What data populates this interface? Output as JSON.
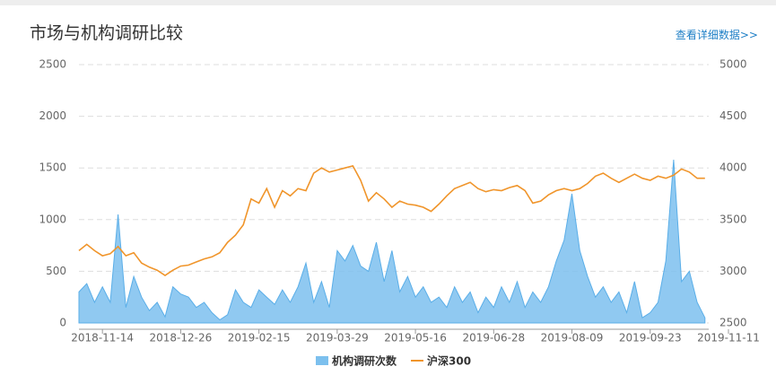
{
  "title": "市场与机构调研比较",
  "link": "查看详细数据>>",
  "chart_data": {
    "type": "area-line",
    "categories": [
      null,
      null,
      null,
      "2018-11-14",
      null,
      null,
      null,
      null,
      null,
      null,
      null,
      null,
      null,
      "2018-12-26",
      null,
      null,
      null,
      null,
      null,
      null,
      null,
      null,
      null,
      "2019-02-15",
      null,
      null,
      null,
      null,
      null,
      null,
      null,
      null,
      null,
      "2019-03-29",
      null,
      null,
      null,
      null,
      null,
      null,
      null,
      null,
      null,
      "2019-05-16",
      null,
      null,
      null,
      null,
      null,
      null,
      null,
      null,
      null,
      "2019-06-28",
      null,
      null,
      null,
      null,
      null,
      null,
      null,
      null,
      null,
      "2019-08-09",
      null,
      null,
      null,
      null,
      null,
      null,
      null,
      null,
      null,
      "2019-09-23",
      null,
      null,
      null,
      null,
      null,
      null,
      null,
      null,
      null,
      "2019-11-11"
    ],
    "series": [
      {
        "name": "机构调研次数",
        "color": "#7cc0ee",
        "kind": "area",
        "values": [
          300,
          380,
          200,
          350,
          200,
          1050,
          150,
          450,
          250,
          120,
          200,
          60,
          350,
          280,
          250,
          150,
          200,
          100,
          30,
          80,
          320,
          200,
          150,
          320,
          250,
          180,
          320,
          200,
          350,
          580,
          200,
          400,
          150,
          700,
          600,
          750,
          550,
          500,
          780,
          400,
          700,
          300,
          450,
          250,
          350,
          200,
          250,
          150,
          350,
          200,
          300,
          100,
          250,
          150,
          350,
          200,
          400,
          150,
          300,
          200,
          350,
          600,
          800,
          1250,
          700,
          450,
          250,
          350,
          200,
          300,
          100,
          400,
          50,
          100,
          200,
          600,
          1580,
          400,
          500,
          200,
          50,
          null,
          null,
          null
        ]
      },
      {
        "name": "沪深300",
        "color": "#f0952b",
        "kind": "line",
        "axis": "y2",
        "values": [
          3200,
          3260,
          3200,
          3150,
          3170,
          3240,
          3150,
          3180,
          3080,
          3040,
          3010,
          2960,
          3010,
          3050,
          3060,
          3090,
          3120,
          3140,
          3180,
          3280,
          3350,
          3450,
          3700,
          3660,
          3800,
          3620,
          3780,
          3730,
          3800,
          3780,
          3950,
          4000,
          3960,
          3980,
          4000,
          4020,
          3880,
          3680,
          3760,
          3700,
          3620,
          3680,
          3650,
          3640,
          3620,
          3580,
          3650,
          3730,
          3800,
          3830,
          3860,
          3800,
          3770,
          3790,
          3780,
          3810,
          3830,
          3780,
          3660,
          3680,
          3740,
          3780,
          3800,
          3780,
          3800,
          3850,
          3920,
          3950,
          3900,
          3860,
          3900,
          3940,
          3900,
          3880,
          3920,
          3900,
          3930,
          3990,
          3960,
          3900,
          3900,
          null,
          null,
          null
        ]
      }
    ],
    "ylim": [
      0,
      2500
    ],
    "yticks": [
      0,
      500,
      1000,
      1500,
      2000,
      2500
    ],
    "y2lim": [
      2500,
      5000
    ],
    "y2ticks": [
      2500,
      3000,
      3500,
      4000,
      4500,
      5000
    ],
    "grid": true,
    "legend": "bottom"
  }
}
